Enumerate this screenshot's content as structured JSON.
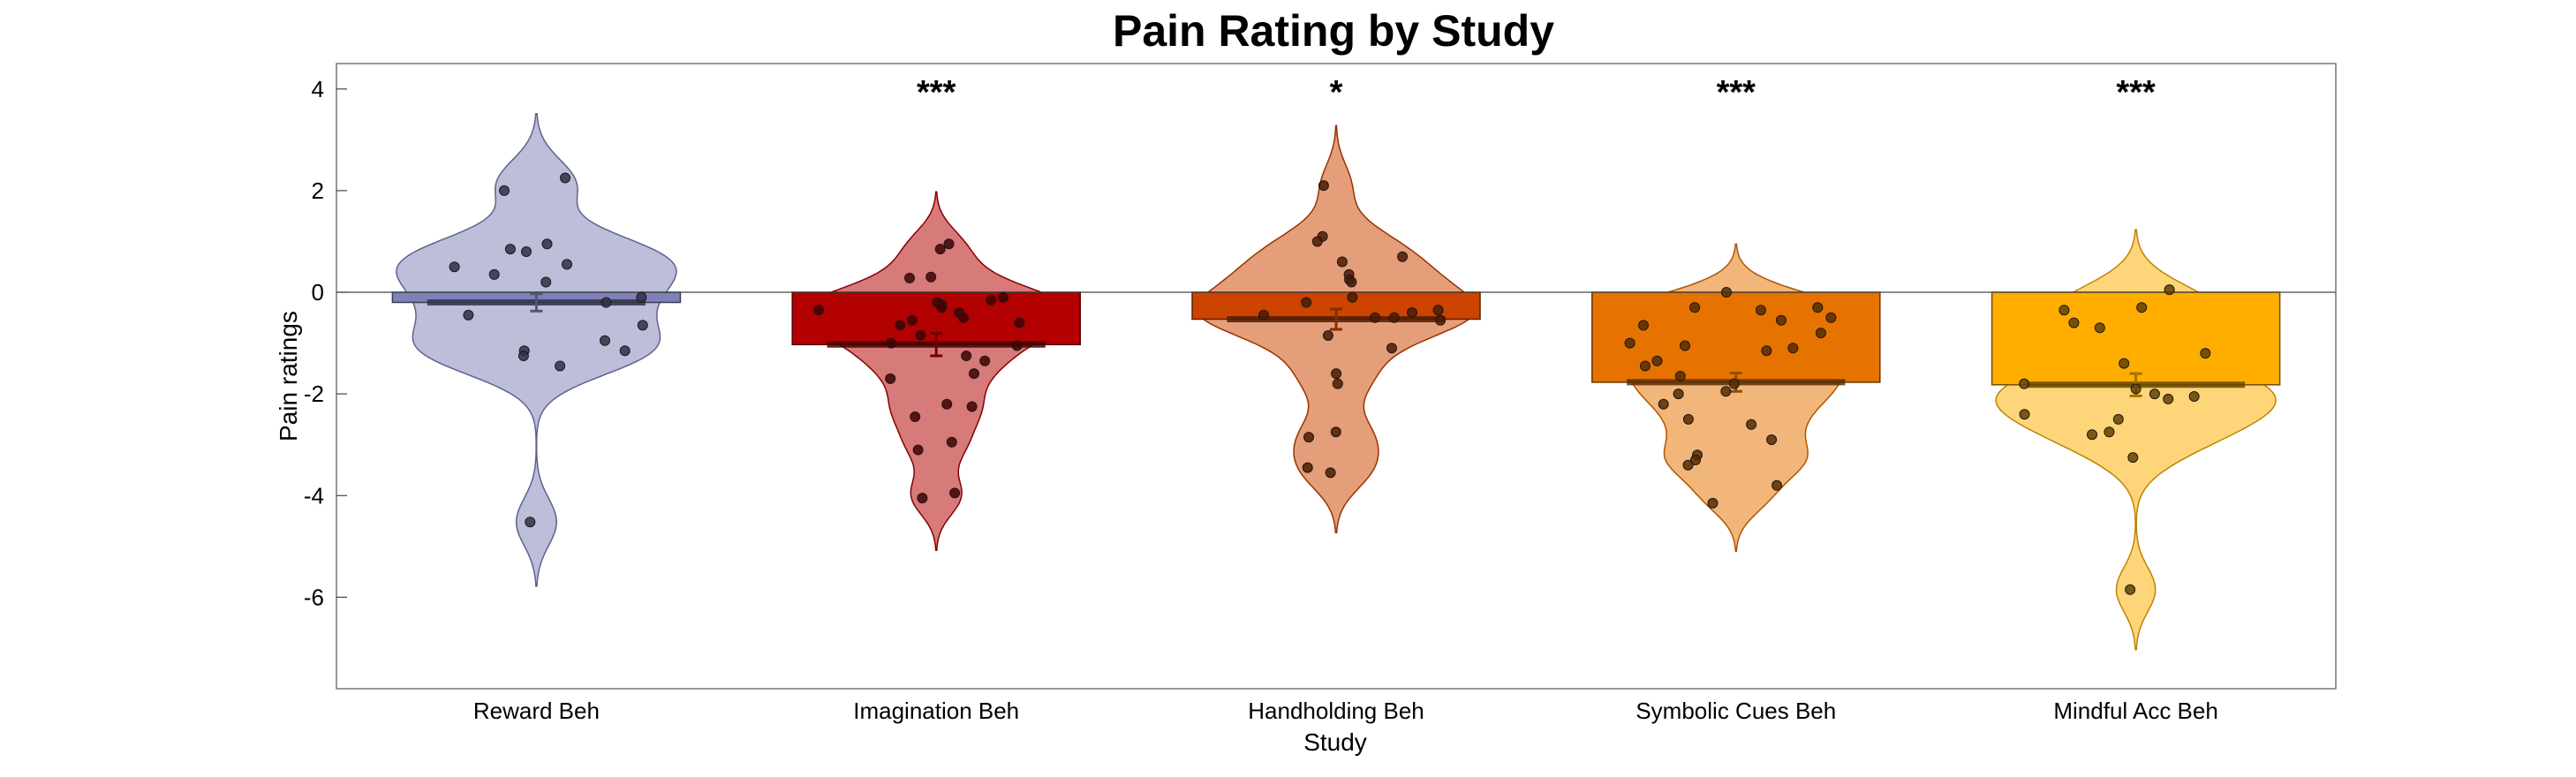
{
  "chart_data": {
    "type": "bar",
    "title": "Pain Rating by Study",
    "xlabel": "Study",
    "ylabel": "Pain ratings",
    "ylim": [
      -7.8,
      4.5
    ],
    "yticks": [
      4,
      2,
      0,
      -2,
      -4,
      -6
    ],
    "yticklabels": [
      "4",
      "2",
      "0",
      "-2",
      "-4",
      "-6"
    ],
    "grid": false,
    "categories": [
      "Reward Beh",
      "Imagination Beh",
      "Handholding Beh",
      "Symbolic Cues Beh",
      "Mindful Acc Beh"
    ],
    "series": [
      {
        "values": [
          -0.2,
          -1.03,
          -0.53,
          -1.77,
          -1.82
        ],
        "sem": [
          0.17,
          0.22,
          0.2,
          0.18,
          0.22
        ],
        "colors": [
          "#7F82B8",
          "#B30000",
          "#CC4400",
          "#E67300",
          "#FFAE00"
        ],
        "significance": [
          "",
          "***",
          "*",
          "***",
          "***"
        ],
        "points": [
          [
            2.25,
            2.0,
            0.95,
            0.85,
            0.8,
            0.55,
            0.5,
            0.35,
            0.2,
            -0.1,
            -0.2,
            -0.45,
            -0.65,
            -0.95,
            -1.15,
            -1.15,
            -1.25,
            -1.45,
            -4.52
          ],
          [
            0.95,
            0.85,
            0.3,
            0.28,
            -0.1,
            -0.15,
            -0.2,
            -0.25,
            -0.3,
            -0.35,
            -0.4,
            -0.5,
            -0.55,
            -0.6,
            -0.65,
            -0.85,
            -1.0,
            -1.05,
            -1.25,
            -1.35,
            -1.6,
            -1.7,
            -2.2,
            -2.25,
            -2.45,
            -2.95,
            -3.1,
            -3.95,
            -4.05
          ],
          [
            2.1,
            1.1,
            1.0,
            0.7,
            0.6,
            0.35,
            0.25,
            0.2,
            -0.1,
            -0.2,
            -0.35,
            -0.4,
            -0.45,
            -0.5,
            -0.5,
            -0.55,
            -0.85,
            -1.1,
            -1.6,
            -1.8,
            -2.75,
            -2.85,
            -3.45,
            -3.55
          ],
          [
            0.0,
            -0.3,
            -0.3,
            -0.35,
            -0.5,
            -0.55,
            -0.65,
            -0.8,
            -1.0,
            -1.05,
            -1.1,
            -1.15,
            -1.35,
            -1.45,
            -1.65,
            -1.8,
            -1.95,
            -2.0,
            -2.2,
            -2.5,
            -2.6,
            -2.9,
            -3.2,
            -3.3,
            -3.4,
            -3.8,
            -4.15
          ],
          [
            0.05,
            -0.3,
            -0.35,
            -0.6,
            -0.7,
            -1.2,
            -1.4,
            -1.8,
            -1.9,
            -2.0,
            -2.05,
            -2.1,
            -2.4,
            -2.5,
            -2.75,
            -2.8,
            -3.25,
            -5.85
          ]
        ]
      }
    ]
  }
}
